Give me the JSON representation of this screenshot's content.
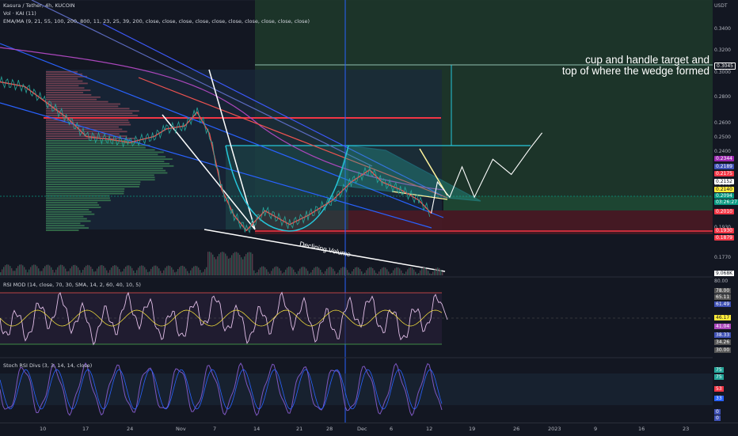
{
  "header": {
    "symbol_line": "Kasura / Tether, 4h, KUCOIN",
    "vol_line": "Vol · KAI (11)",
    "ema_line": "EMA/MA (9, 21, 55, 100, 200, 800, 11, 23, 25, 39, 200, close, close, close, close, close, close, close, close, close, close)",
    "rsi_line": "RSI MOD (14, close, 70, 30, SMA, 14, 2, 60, 40, 10, 5)",
    "stoch_line": "Stoch RSI Divs (3, 3, 14, 14, close)"
  },
  "annotations": {
    "target_line1": "cup and handle target and",
    "target_line2": "top of where the wedge formed",
    "volume_note": "Declining Volume"
  },
  "price_axis": {
    "currency": "USDT",
    "ticks": [
      "0.3400",
      "0.3200",
      "0.3000",
      "0.2800",
      "0.2600",
      "0.2500",
      "0.2400",
      "0.2152",
      "0.1930",
      "0.1770"
    ],
    "badges": [
      {
        "text": "0.3045",
        "color": "#ffffff",
        "bg": "#131722",
        "border": "#ffffff",
        "value": 0.3045
      },
      {
        "text": "0.2344",
        "color": "#ffffff",
        "bg": "#9c27b0",
        "value": 0.2344
      },
      {
        "text": "0.2189",
        "color": "#ffffff",
        "bg": "#3f51b5",
        "value": 0.2189
      },
      {
        "text": "0.2175",
        "color": "#ffffff",
        "bg": "#f23645",
        "value": 0.2175
      },
      {
        "text": "0.2152",
        "color": "#131722",
        "bg": "#ffffff",
        "value": 0.2152
      },
      {
        "text": "0.2140",
        "color": "#131722",
        "bg": "#ffeb3b",
        "value": 0.214
      },
      {
        "text": "0.2094",
        "color": "#ffffff",
        "bg": "#089981",
        "value": 0.2094
      },
      {
        "text": "03:26:27",
        "color": "#ffffff",
        "bg": "#089981",
        "value": 0.2094
      },
      {
        "text": "0.2010",
        "color": "#ffffff",
        "bg": "#f23645",
        "value": 0.201
      },
      {
        "text": "0.1930",
        "color": "#ffffff",
        "bg": "#f23645",
        "value": 0.193
      },
      {
        "text": "0.1879",
        "color": "#ffffff",
        "bg": "#f23645",
        "value": 0.1879
      }
    ],
    "vol_badge": "9.068K"
  },
  "rsi_axis": {
    "ticks": [
      "80.00",
      "78.00",
      "65.11",
      "61.49",
      "46.17",
      "41.04",
      "38.33",
      "34.26",
      "30.00"
    ]
  },
  "stoch_axis": {
    "ticks": [
      "75",
      "75",
      "53",
      "33",
      "0",
      "0"
    ]
  },
  "time_axis": {
    "labels": [
      "10",
      "17",
      "24",
      "Nov",
      "7",
      "14",
      "21",
      "28",
      "Dec",
      "6",
      "12",
      "19",
      "26",
      "2023",
      "9",
      "16",
      "23"
    ]
  },
  "chart_data": {
    "type": "line",
    "title": "Kasura / Tether, 4h, KUCOIN",
    "ylabel": "USDT",
    "ylim": [
      0.17,
      0.35
    ],
    "key_levels": [
      0.3045,
      0.2624,
      0.2452,
      0.2188,
      0.2094,
      0.201,
      0.193,
      0.1879
    ],
    "price_path": [
      {
        "x": "Oct 3",
        "y": 0.296
      },
      {
        "x": "Oct 7",
        "y": 0.293
      },
      {
        "x": "Oct 10",
        "y": 0.284
      },
      {
        "x": "Oct 14",
        "y": 0.272
      },
      {
        "x": "Oct 17",
        "y": 0.26
      },
      {
        "x": "Oct 21",
        "y": 0.258
      },
      {
        "x": "Oct 24",
        "y": 0.256
      },
      {
        "x": "Oct 28",
        "y": 0.26
      },
      {
        "x": "Nov 1",
        "y": 0.265
      },
      {
        "x": "Nov 4",
        "y": 0.267
      },
      {
        "x": "Nov 6",
        "y": 0.276
      },
      {
        "x": "Nov 8",
        "y": 0.262
      },
      {
        "x": "Nov 10",
        "y": 0.225
      },
      {
        "x": "Nov 12",
        "y": 0.208
      },
      {
        "x": "Nov 14",
        "y": 0.198
      },
      {
        "x": "Nov 17",
        "y": 0.211
      },
      {
        "x": "Nov 21",
        "y": 0.202
      },
      {
        "x": "Nov 24",
        "y": 0.208
      },
      {
        "x": "Nov 28",
        "y": 0.218
      },
      {
        "x": "Dec 1",
        "y": 0.23
      },
      {
        "x": "Dec 4",
        "y": 0.238
      },
      {
        "x": "Dec 6",
        "y": 0.23
      },
      {
        "x": "Dec 9",
        "y": 0.225
      },
      {
        "x": "Dec 12",
        "y": 0.218
      },
      {
        "x": "Dec 14",
        "y": 0.2094
      }
    ],
    "projection_path": [
      {
        "x": "Dec 14",
        "y": 0.2094
      },
      {
        "x": "Dec 15",
        "y": 0.23
      },
      {
        "x": "Dec 17",
        "y": 0.22
      },
      {
        "x": "Dec 19",
        "y": 0.24
      },
      {
        "x": "Dec 21",
        "y": 0.22
      },
      {
        "x": "Dec 24",
        "y": 0.245
      },
      {
        "x": "Dec 27",
        "y": 0.235
      },
      {
        "x": "Dec 30",
        "y": 0.252
      },
      {
        "x": "Jan 1",
        "y": 0.2624
      }
    ],
    "volume_trend": "declining",
    "series": [
      {
        "name": "Kasura / Tether, 4h, KUCOIN",
        "color": "#ef5350"
      }
    ]
  }
}
